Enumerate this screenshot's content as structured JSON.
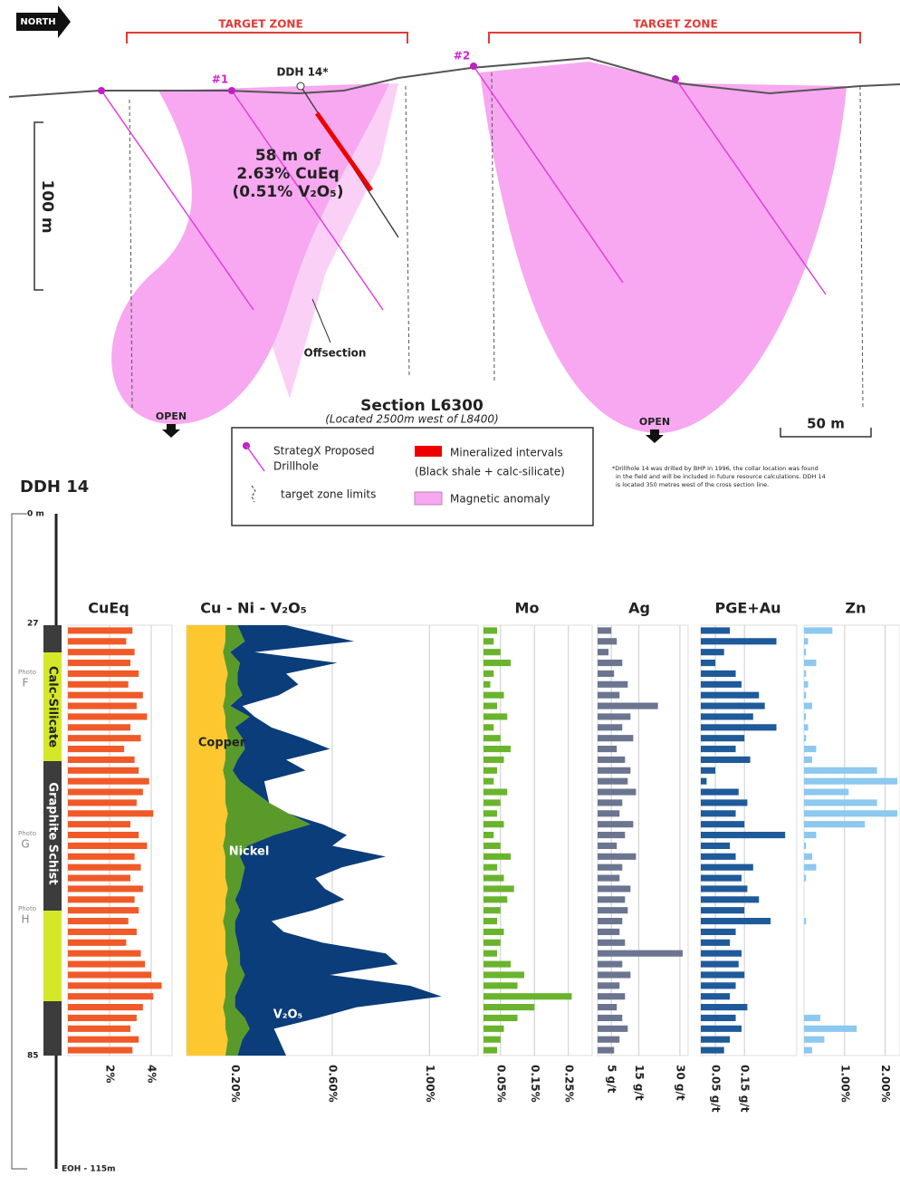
{
  "section": {
    "north": "NORTH",
    "target_zones": [
      "TARGET ZONE",
      "TARGET ZONE"
    ],
    "holes": [
      "#1",
      "#2"
    ],
    "ddh_label": "DDH 14*",
    "intercept": [
      "58 m of",
      "2.63% CuEq",
      "(0.51% V₂O₅)"
    ],
    "scale_vertical": "100 m",
    "offsection": "Offsection",
    "title": "Section L6300",
    "subtitle": "(Located 2500m west of L8400)",
    "open": [
      "OPEN",
      "OPEN"
    ],
    "scale_horizontal": "50 m"
  },
  "legend": {
    "drillhole": [
      "StrategX Proposed",
      "Drillhole"
    ],
    "target_limits": "target zone limits",
    "mineralized": [
      "Mineralized intervals",
      "(Black shale + calc-silicate)"
    ],
    "magnetic": "Magnetic anomaly"
  },
  "footnote": [
    "*Drillhole 14 was drilled by BHP in 1996, the collar location was found",
    "in the field and will be included in future resource calculations. DDH 14",
    "is located 350 metres west of the cross section line."
  ],
  "log": {
    "title": "DDH 14",
    "depth_labels": [
      "0 m",
      "27",
      "85",
      "EOH - 115m"
    ],
    "units": [
      "Calc-Silicate",
      "Graphite Schist"
    ],
    "photos": [
      {
        "label": "Photo",
        "letter": "F"
      },
      {
        "label": "Photo",
        "letter": "G"
      },
      {
        "label": "Photo",
        "letter": "H"
      }
    ],
    "stack": {
      "title": "Cu - Ni - V₂O₅",
      "xlim": [
        0,
        1.2
      ],
      "xticks": [
        {
          "value": 0.2,
          "label": "0.20%"
        },
        {
          "value": 0.6,
          "label": "0.60%"
        },
        {
          "value": 1.0,
          "label": "1.00%"
        }
      ],
      "series": [
        {
          "name": "Copper",
          "color": "#fdc82f",
          "values": [
            0.16,
            0.16,
            0.15,
            0.16,
            0.17,
            0.16,
            0.16,
            0.15,
            0.16,
            0.16,
            0.17,
            0.16,
            0.16,
            0.15,
            0.16,
            0.16,
            0.16,
            0.17,
            0.16,
            0.16,
            0.15,
            0.16,
            0.16,
            0.16,
            0.17,
            0.16,
            0.16,
            0.15,
            0.16,
            0.16,
            0.16,
            0.17,
            0.16,
            0.16,
            0.16,
            0.15,
            0.16,
            0.16,
            0.17,
            0.16
          ]
        },
        {
          "name": "Nickel",
          "color": "#5a9a2a",
          "values": [
            0.05,
            0.08,
            0.03,
            0.06,
            0.04,
            0.05,
            0.07,
            0.03,
            0.1,
            0.04,
            0.06,
            0.08,
            0.05,
            0.04,
            0.06,
            0.12,
            0.18,
            0.25,
            0.35,
            0.2,
            0.1,
            0.06,
            0.08,
            0.07,
            0.05,
            0.04,
            0.06,
            0.05,
            0.04,
            0.05,
            0.06,
            0.05,
            0.08,
            0.06,
            0.04,
            0.05,
            0.08,
            0.1,
            0.06,
            0.05
          ]
        },
        {
          "name": "V₂O₅",
          "color": "#0b3d7a",
          "values": [
            0.2,
            0.45,
            0.1,
            0.4,
            0.2,
            0.25,
            0.15,
            0.05,
            0.02,
            0.15,
            0.25,
            0.35,
            0.2,
            0.3,
            0.1,
            0.05,
            0,
            0,
            0.05,
            0.3,
            0.35,
            0.6,
            0.4,
            0.3,
            0.35,
            0.45,
            0.3,
            0.15,
            0.2,
            0.35,
            0.6,
            0.65,
            0.35,
            0.7,
            0.85,
            0.5,
            0.3,
            0.1,
            0.15,
            0.2
          ]
        }
      ]
    },
    "panels": [
      {
        "title": "CuEq",
        "color": "#f05a28",
        "xlim": [
          0,
          5
        ],
        "xticks": [
          {
            "value": 2,
            "label": "2%"
          },
          {
            "value": 4,
            "label": "4%"
          }
        ],
        "values": [
          3.1,
          2.8,
          3.2,
          3.0,
          3.4,
          2.9,
          3.6,
          3.3,
          3.8,
          3.0,
          3.5,
          2.7,
          3.2,
          3.4,
          3.9,
          3.6,
          3.3,
          4.1,
          3.0,
          3.4,
          3.8,
          3.2,
          3.5,
          3.0,
          3.6,
          3.2,
          3.4,
          2.9,
          3.3,
          2.8,
          3.5,
          3.7,
          4.0,
          4.5,
          4.1,
          3.6,
          3.3,
          3.0,
          3.4,
          3.1
        ]
      },
      {
        "title": "Mo",
        "color": "#6ab42d",
        "xlim": [
          0,
          0.32
        ],
        "xticks": [
          {
            "value": 0.05,
            "label": "0.05%"
          },
          {
            "value": 0.15,
            "label": "0.15%"
          },
          {
            "value": 0.25,
            "label": "0.25%"
          }
        ],
        "values": [
          0.04,
          0.03,
          0.05,
          0.08,
          0.03,
          0.02,
          0.06,
          0.04,
          0.07,
          0.03,
          0.05,
          0.08,
          0.06,
          0.04,
          0.03,
          0.07,
          0.05,
          0.04,
          0.06,
          0.03,
          0.05,
          0.08,
          0.04,
          0.06,
          0.09,
          0.07,
          0.05,
          0.04,
          0.06,
          0.05,
          0.04,
          0.08,
          0.12,
          0.1,
          0.26,
          0.15,
          0.1,
          0.06,
          0.05,
          0.04
        ]
      },
      {
        "title": "Ag",
        "color": "#6b7590",
        "xlim": [
          0,
          33
        ],
        "xticks": [
          {
            "value": 5,
            "label": "5 g/t"
          },
          {
            "value": 15,
            "label": "15 g/t"
          },
          {
            "value": 30,
            "label": "30 g/t"
          }
        ],
        "values": [
          5,
          7,
          4,
          9,
          6,
          11,
          8,
          22,
          12,
          9,
          13,
          7,
          10,
          12,
          11,
          14,
          9,
          8,
          13,
          10,
          7,
          14,
          9,
          8,
          12,
          10,
          11,
          9,
          8,
          10,
          31,
          9,
          12,
          8,
          10,
          7,
          9,
          11,
          8,
          6
        ]
      },
      {
        "title": "PGE+Au",
        "color": "#1f5a9a",
        "xlim": [
          0,
          0.33
        ],
        "xticks": [
          {
            "value": 0.05,
            "label": "0.05 g/t"
          },
          {
            "value": 0.15,
            "label": "0.15 g/t"
          }
        ],
        "values": [
          0.1,
          0.26,
          0.08,
          0.05,
          0.12,
          0.14,
          0.2,
          0.22,
          0.18,
          0.26,
          0.15,
          0.12,
          0.17,
          0.05,
          0.02,
          0.13,
          0.16,
          0.12,
          0.15,
          0.29,
          0.1,
          0.12,
          0.18,
          0.14,
          0.16,
          0.2,
          0.15,
          0.24,
          0.12,
          0.1,
          0.14,
          0.13,
          0.15,
          0.12,
          0.1,
          0.16,
          0.12,
          0.14,
          0.1,
          0.08
        ]
      },
      {
        "title": "Zn",
        "color": "#8cc8f0",
        "xlim": [
          0,
          2.5
        ],
        "xticks": [
          {
            "value": 1,
            "label": "1.00%"
          },
          {
            "value": 2,
            "label": "2.00%"
          }
        ],
        "values": [
          0.7,
          0.1,
          0.05,
          0.3,
          0.05,
          0.1,
          0.05,
          0.2,
          0.05,
          0.1,
          0.05,
          0.3,
          0.2,
          1.8,
          2.3,
          1.1,
          1.8,
          2.3,
          1.5,
          0.3,
          0.05,
          0.2,
          0.3,
          0.05,
          0,
          0,
          0,
          0.05,
          0,
          0,
          0,
          0,
          0,
          0,
          0,
          0,
          0.4,
          1.3,
          0.5,
          0.2
        ]
      }
    ]
  }
}
